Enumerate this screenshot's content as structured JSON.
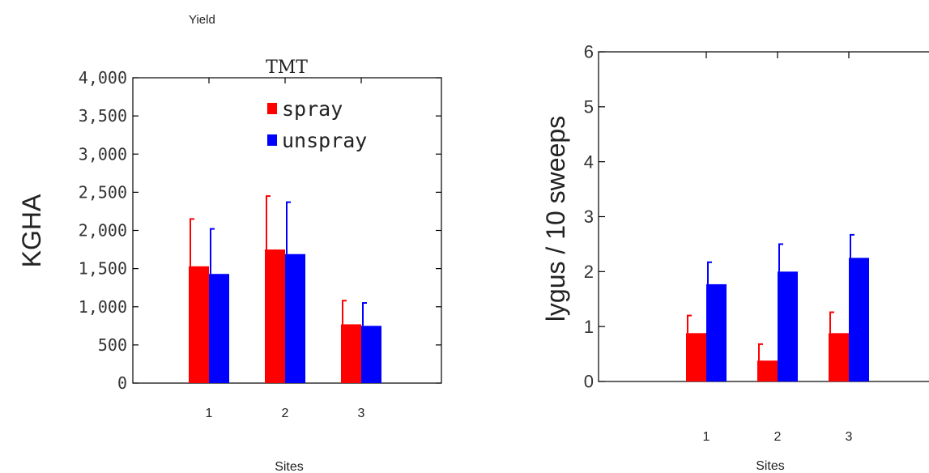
{
  "chart_data": [
    {
      "type": "bar",
      "title": "Yield",
      "subtitle": "TMT",
      "xlabel": "Sites",
      "ylabel": "KGHA",
      "categories": [
        "1",
        "2",
        "3"
      ],
      "ylim": [
        0,
        4000
      ],
      "yticks": [
        "0",
        "500",
        "1,000",
        "1,500",
        "2,000",
        "2,500",
        "3,000",
        "3,500",
        "4,000"
      ],
      "legend_position": "top-right",
      "grid": false,
      "series": [
        {
          "name": "spray",
          "color": "#ff0000",
          "values": [
            1530,
            1750,
            770
          ],
          "errors": [
            620,
            700,
            310
          ]
        },
        {
          "name": "unspray",
          "color": "#0000ff",
          "values": [
            1430,
            1690,
            750
          ],
          "errors": [
            590,
            680,
            300
          ]
        }
      ]
    },
    {
      "type": "bar",
      "title": "",
      "xlabel": "Sites",
      "ylabel": "lygus / 10 sweeps",
      "categories": [
        "1",
        "2",
        "3"
      ],
      "ylim": [
        0,
        6
      ],
      "yticks": [
        "0",
        "1",
        "2",
        "3",
        "4",
        "5",
        "6"
      ],
      "grid": false,
      "series": [
        {
          "color": "#ff0000",
          "values": [
            0.88,
            0.38,
            0.88
          ],
          "errors": [
            0.32,
            0.3,
            0.38
          ]
        },
        {
          "color": "#0000ff",
          "values": [
            1.77,
            2.0,
            2.25
          ],
          "errors": [
            0.4,
            0.5,
            0.42
          ]
        }
      ]
    }
  ]
}
